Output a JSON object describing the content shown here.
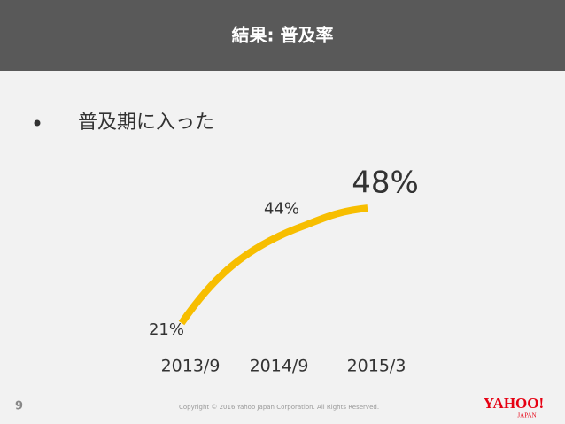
{
  "header": {
    "title": "結果: 普及率"
  },
  "bullet": "普及期に入った",
  "chart_data": {
    "type": "line",
    "categories": [
      "2013/9",
      "2014/9",
      "2015/3"
    ],
    "values": [
      21,
      44,
      48
    ],
    "value_labels": [
      "21%",
      "44%",
      "48%"
    ],
    "color": "#f7be00"
  },
  "footer": {
    "page": "9",
    "copyright": "Copyright © 2016  Yahoo Japan Corporation. All Rights Reserved.",
    "logo": "YAHOO!",
    "logo_sub": "JAPAN"
  }
}
